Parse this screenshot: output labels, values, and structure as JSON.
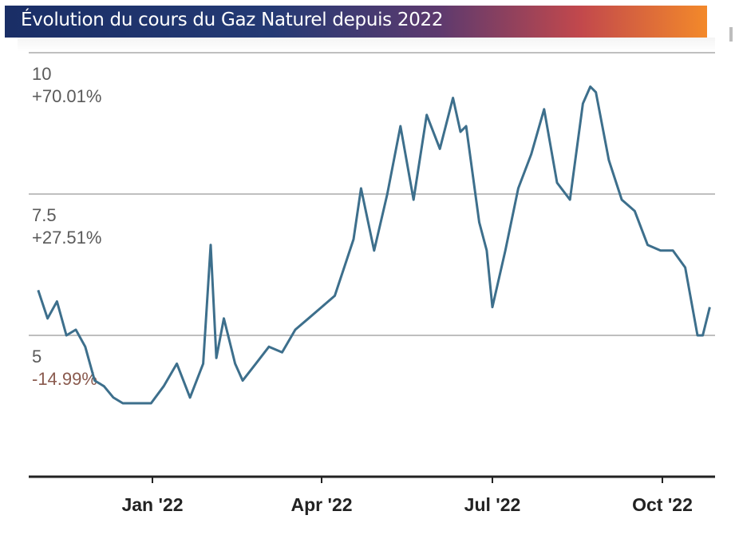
{
  "header": {
    "title": "Évolution du cours du Gaz Naturel depuis 2022"
  },
  "colors": {
    "line": "#3d6f8c",
    "grid": "#bfbfbf",
    "axis": "#222222",
    "label": "#5a5a5a",
    "negative": "#8a5a4e"
  },
  "chart_data": {
    "type": "line",
    "title": "Évolution du cours du Gaz Naturel depuis 2022",
    "xlabel": "",
    "ylabel": "",
    "x_ticks": [
      "Jan '22",
      "Apr '22",
      "Jul '22",
      "Oct '22"
    ],
    "y_ticks": [
      {
        "value": 10,
        "label": "10",
        "pct": "+70.01%"
      },
      {
        "value": 7.5,
        "label": "7.5",
        "pct": "+27.51%"
      },
      {
        "value": 5,
        "label": "5",
        "pct": "-14.99%"
      }
    ],
    "ylim": [
      2.5,
      10.3
    ],
    "grid": true,
    "series": [
      {
        "x": [
          "2021-10-08",
          "2021-10-15",
          "2021-10-22",
          "2021-10-29",
          "2021-11-05",
          "2021-11-12",
          "2021-11-19",
          "2021-11-26",
          "2021-12-03",
          "2021-12-10",
          "2021-12-17",
          "2021-12-24",
          "2021-12-31",
          "2022-01-07",
          "2022-01-14",
          "2022-01-21",
          "2022-01-28",
          "2022-02-01",
          "2022-02-04",
          "2022-02-08",
          "2022-02-11",
          "2022-02-14",
          "2022-02-18",
          "2022-02-25",
          "2022-03-04",
          "2022-03-11",
          "2022-03-18",
          "2022-03-25",
          "2022-04-01",
          "2022-04-08",
          "2022-04-14",
          "2022-04-18",
          "2022-04-22",
          "2022-04-29",
          "2022-05-06",
          "2022-05-13",
          "2022-05-20",
          "2022-05-27",
          "2022-06-03",
          "2022-06-10",
          "2022-06-14",
          "2022-06-17",
          "2022-06-24",
          "2022-06-28",
          "2022-07-01",
          "2022-07-08",
          "2022-07-15",
          "2022-07-22",
          "2022-07-29",
          "2022-08-05",
          "2022-08-12",
          "2022-08-19",
          "2022-08-23",
          "2022-08-26",
          "2022-09-02",
          "2022-09-09",
          "2022-09-16",
          "2022-09-23",
          "2022-09-30",
          "2022-10-07",
          "2022-10-14",
          "2022-10-21",
          "2022-10-24",
          "2022-10-28"
        ],
        "y": [
          5.8,
          5.3,
          5.6,
          5.0,
          5.1,
          4.8,
          4.2,
          4.1,
          3.9,
          3.8,
          3.8,
          3.8,
          3.8,
          4.1,
          4.5,
          3.9,
          4.5,
          6.6,
          4.6,
          5.3,
          4.9,
          4.5,
          4.2,
          4.5,
          4.8,
          4.7,
          5.1,
          5.3,
          5.5,
          5.7,
          6.3,
          6.7,
          7.6,
          6.5,
          7.5,
          8.7,
          7.4,
          8.9,
          8.3,
          9.2,
          8.6,
          8.7,
          7.0,
          6.5,
          5.5,
          6.5,
          7.6,
          8.2,
          9.0,
          7.7,
          7.4,
          9.1,
          9.4,
          9.3,
          8.1,
          7.4,
          7.2,
          6.6,
          6.5,
          6.5,
          6.2,
          5.0,
          5.0,
          5.5
        ]
      }
    ]
  }
}
